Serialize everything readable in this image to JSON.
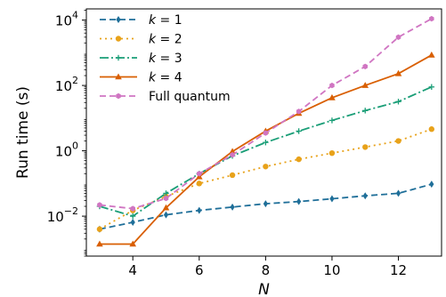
{
  "chart_data": {
    "type": "line",
    "title": "",
    "xlabel": "N",
    "ylabel": "Run time (s)",
    "yscale": "log",
    "xlim": [
      2.6,
      13.3
    ],
    "ylim": [
      0.0006,
      22000
    ],
    "xticks": [
      4,
      6,
      8,
      10,
      12
    ],
    "yticks": [
      {
        "value": 0.01,
        "base": "10",
        "exp": "−2"
      },
      {
        "value": 1,
        "base": "10",
        "exp": "0"
      },
      {
        "value": 100,
        "base": "10",
        "exp": "2"
      },
      {
        "value": 10000,
        "base": "10",
        "exp": "4"
      }
    ],
    "grid": false,
    "legend_position": "top-left",
    "x": [
      3,
      4,
      5,
      6,
      7,
      8,
      9,
      10,
      11,
      12,
      13
    ],
    "series": [
      {
        "name": "k = 1",
        "legend_k": "k",
        "legend_value": " = 1",
        "color": "#1f6f99",
        "dash": "7,4",
        "marker": "diamond",
        "values": [
          0.004,
          0.0065,
          0.011,
          0.015,
          0.019,
          0.024,
          0.028,
          0.034,
          0.042,
          0.05,
          0.095
        ]
      },
      {
        "name": "k = 2",
        "legend_k": "k",
        "legend_value": " = 2",
        "color": "#e8a21a",
        "dash": "2,4",
        "marker": "circle",
        "values": [
          0.004,
          0.015,
          0.04,
          0.1,
          0.18,
          0.33,
          0.55,
          0.85,
          1.3,
          2.0,
          4.6
        ]
      },
      {
        "name": "k = 3",
        "legend_k": "k",
        "legend_value": " = 3",
        "color": "#1a9e77",
        "dash": "10,3,2,3",
        "marker": "plus",
        "values": [
          0.02,
          0.01,
          0.05,
          0.2,
          0.7,
          1.8,
          4.0,
          8.5,
          17,
          32,
          90
        ]
      },
      {
        "name": "k = 4",
        "legend_k": "k",
        "legend_value": " = 4",
        "color": "#d95f02",
        "dash": "",
        "marker": "triangle",
        "values": [
          0.0014,
          0.0014,
          0.018,
          0.16,
          0.95,
          4.0,
          14,
          42,
          100,
          230,
          850
        ]
      },
      {
        "name": "Full quantum",
        "legend_k": "",
        "legend_value": "Full quantum",
        "color": "#d075c2",
        "dash": "7,4",
        "marker": "hexagon",
        "values": [
          0.022,
          0.017,
          0.035,
          0.2,
          0.75,
          3.5,
          16,
          100,
          380,
          3000,
          11000
        ]
      }
    ]
  }
}
